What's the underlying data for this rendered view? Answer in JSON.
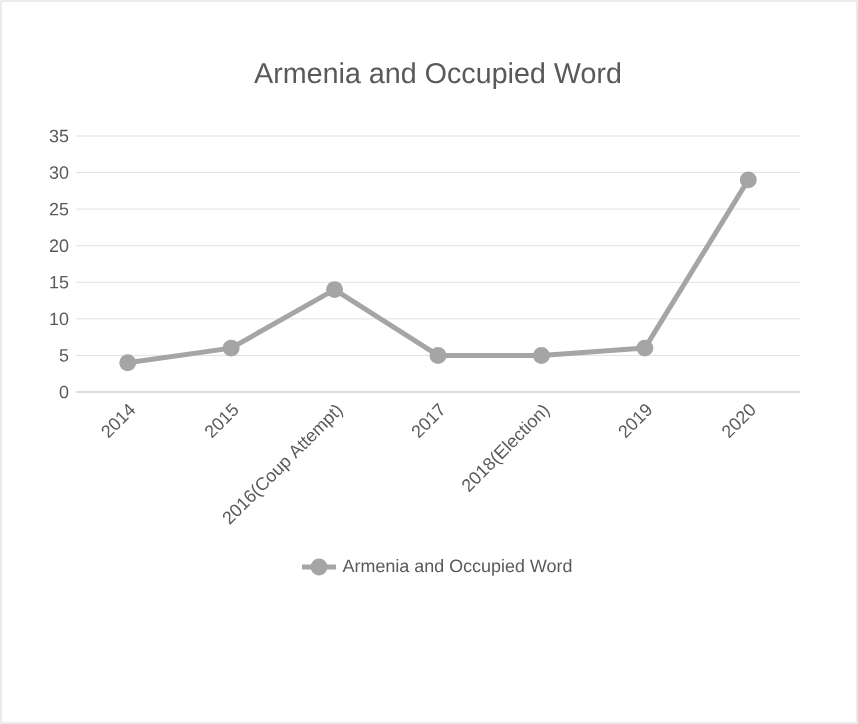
{
  "chart_data": {
    "type": "line",
    "title": "Armenia and Occupied Word",
    "categories": [
      "2014",
      "2015",
      "2016(Coup Attempt)",
      "2017",
      "2018(Election)",
      "2019",
      "2020"
    ],
    "series": [
      {
        "name": "Armenia and Occupied Word",
        "color": "#a5a5a5",
        "values": [
          4,
          6,
          14,
          5,
          5,
          6,
          29
        ]
      }
    ],
    "ylim": [
      0,
      35
    ],
    "yticks": [
      0,
      5,
      10,
      15,
      20,
      25,
      30,
      35
    ],
    "grid": "y",
    "legend": "bottom",
    "marker": "circle",
    "line_style": "solid"
  }
}
